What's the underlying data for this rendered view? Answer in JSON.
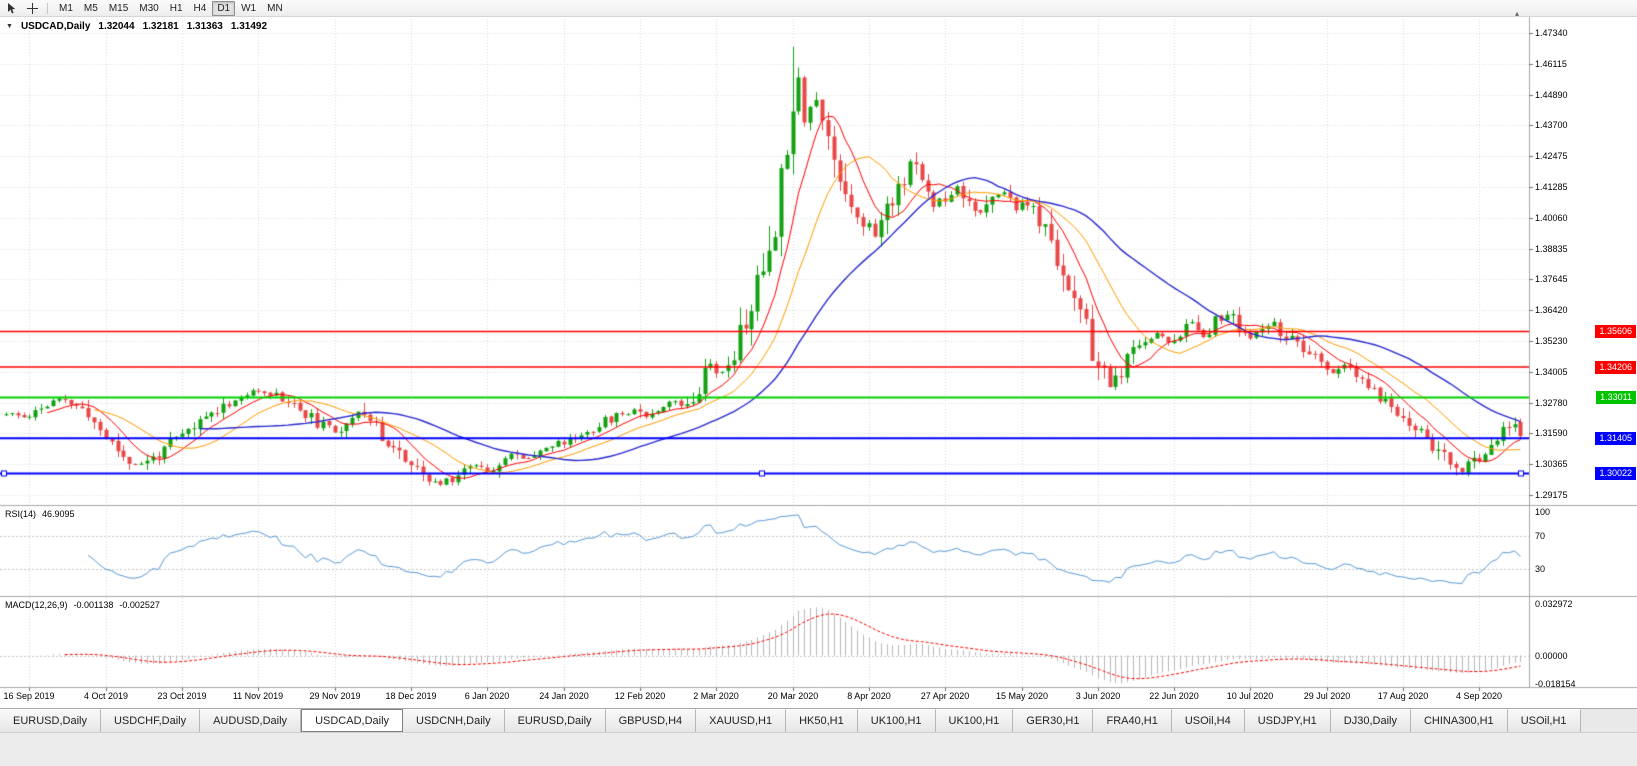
{
  "toolbar": {
    "timeframes": [
      {
        "label": "M1",
        "active": false
      },
      {
        "label": "M5",
        "active": false
      },
      {
        "label": "M15",
        "active": false
      },
      {
        "label": "M30",
        "active": false
      },
      {
        "label": "H1",
        "active": false
      },
      {
        "label": "H4",
        "active": false
      },
      {
        "label": "D1",
        "active": true
      },
      {
        "label": "W1",
        "active": false
      },
      {
        "label": "MN",
        "active": false
      }
    ]
  },
  "chart": {
    "title": {
      "symbol": "USDCAD,Daily",
      "open": "1.32044",
      "high": "1.32181",
      "low": "1.31363",
      "close": "1.31492"
    },
    "price_axis_ticks": [
      "1.47340",
      "1.46115",
      "1.44890",
      "1.43700",
      "1.42475",
      "1.41285",
      "1.40060",
      "1.38835",
      "1.37645",
      "1.36420",
      "1.35230",
      "1.34005",
      "1.32780",
      "1.31590",
      "1.30365",
      "1.29175"
    ],
    "date_axis_ticks": [
      "16 Sep 2019",
      "4 Oct 2019",
      "23 Oct 2019",
      "11 Nov 2019",
      "29 Nov 2019",
      "18 Dec 2019",
      "6 Jan 2020",
      "24 Jan 2020",
      "12 Feb 2020",
      "2 Mar 2020",
      "20 Mar 2020",
      "8 Apr 2020",
      "27 Apr 2020",
      "15 May 2020",
      "3 Jun 2020",
      "22 Jun 2020",
      "10 Jul 2020",
      "29 Jul 2020",
      "17 Aug 2020",
      "4 Sep 2020"
    ],
    "price_tags": [
      {
        "label": "1.35606",
        "price": 1.35606,
        "color": "#ff0000"
      },
      {
        "label": "1.34206",
        "price": 1.34206,
        "color": "#ff0000"
      },
      {
        "label": "1.33011",
        "price": 1.33011,
        "color": "#00c400"
      },
      {
        "label": "1.31405",
        "price": 1.31405,
        "color": "#0000ff"
      },
      {
        "label": "1.30022",
        "price": 1.30022,
        "color": "#0000ff"
      }
    ]
  },
  "rsi": {
    "title": "RSI(14)",
    "value": "46.9095",
    "levels": [
      "100",
      "70",
      "30"
    ]
  },
  "macd": {
    "title": "MACD(12,26,9)",
    "value_main": "-0.001138",
    "value_signal": "-0.002527",
    "levels": [
      "0.032972",
      "0.00000",
      "-0.018154"
    ]
  },
  "tabs": [
    {
      "label": "EURUSD,Daily",
      "active": false
    },
    {
      "label": "USDCHF,Daily",
      "active": false
    },
    {
      "label": "AUDUSD,Daily",
      "active": false
    },
    {
      "label": "USDCAD,Daily",
      "active": true
    },
    {
      "label": "USDCNH,Daily",
      "active": false
    },
    {
      "label": "EURUSD,Daily",
      "active": false
    },
    {
      "label": "GBPUSD,H4",
      "active": false
    },
    {
      "label": "XAUUSD,H1",
      "active": false
    },
    {
      "label": "HK50,H1",
      "active": false
    },
    {
      "label": "UK100,H1",
      "active": false
    },
    {
      "label": "UK100,H1",
      "active": false
    },
    {
      "label": "GER30,H1",
      "active": false
    },
    {
      "label": "FRA40,H1",
      "active": false
    },
    {
      "label": "USOil,H4",
      "active": false
    },
    {
      "label": "USDJPY,H1",
      "active": false
    },
    {
      "label": "DJ30,Daily",
      "active": false
    },
    {
      "label": "CHINA300,H1",
      "active": false
    },
    {
      "label": "USOil,H1",
      "active": false
    }
  ],
  "chart_data": {
    "type": "candlestick",
    "symbol": "USDCAD",
    "period": "Daily",
    "last_bar": {
      "open": 1.32044,
      "high": 1.32181,
      "low": 1.31363,
      "close": 1.31492
    },
    "n_bars": 259,
    "first_label_bar": 4,
    "bars_per_label": 13,
    "x_labels": [
      "16 Sep 2019",
      "4 Oct 2019",
      "23 Oct 2019",
      "11 Nov 2019",
      "29 Nov 2019",
      "18 Dec 2019",
      "6 Jan 2020",
      "24 Jan 2020",
      "12 Feb 2020",
      "2 Mar 2020",
      "20 Mar 2020",
      "8 Apr 2020",
      "27 Apr 2020",
      "15 May 2020",
      "3 Jun 2020",
      "22 Jun 2020",
      "10 Jul 2020",
      "29 Jul 2020",
      "17 Aug 2020",
      "4 Sep 2020"
    ],
    "y_ticks": [
      1.4734,
      1.46115,
      1.4489,
      1.437,
      1.42475,
      1.41285,
      1.4006,
      1.38835,
      1.37645,
      1.3642,
      1.3523,
      1.34005,
      1.3278,
      1.3159,
      1.30365,
      1.29175
    ],
    "y_range": [
      1.29175,
      1.4734
    ],
    "close_anchors": [
      [
        0,
        1.3235
      ],
      [
        3,
        1.3225
      ],
      [
        6,
        1.326
      ],
      [
        9,
        1.3292
      ],
      [
        12,
        1.3268
      ],
      [
        15,
        1.3205
      ],
      [
        18,
        1.312
      ],
      [
        21,
        1.3048
      ],
      [
        23,
        1.3035
      ],
      [
        26,
        1.308
      ],
      [
        29,
        1.3135
      ],
      [
        32,
        1.3185
      ],
      [
        35,
        1.3242
      ],
      [
        38,
        1.3282
      ],
      [
        41,
        1.3312
      ],
      [
        44,
        1.3328
      ],
      [
        47,
        1.33
      ],
      [
        50,
        1.3255
      ],
      [
        53,
        1.32
      ],
      [
        56,
        1.3165
      ],
      [
        58,
        1.3212
      ],
      [
        60,
        1.3252
      ],
      [
        62,
        1.3205
      ],
      [
        64,
        1.315
      ],
      [
        66,
        1.3108
      ],
      [
        68,
        1.3058
      ],
      [
        70,
        1.3008
      ],
      [
        72,
        1.2972
      ],
      [
        74,
        1.2958
      ],
      [
        76,
        1.2988
      ],
      [
        78,
        1.3018
      ],
      [
        80,
        1.3042
      ],
      [
        82,
        1.3012
      ],
      [
        84,
        1.3052
      ],
      [
        86,
        1.3078
      ],
      [
        88,
        1.3058
      ],
      [
        90,
        1.3088
      ],
      [
        93,
        1.3112
      ],
      [
        96,
        1.3132
      ],
      [
        99,
        1.3168
      ],
      [
        102,
        1.3208
      ],
      [
        105,
        1.3238
      ],
      [
        107,
        1.3258
      ],
      [
        109,
        1.323
      ],
      [
        111,
        1.326
      ],
      [
        113,
        1.3288
      ],
      [
        115,
        1.327
      ],
      [
        117,
        1.3312
      ],
      [
        119,
        1.3402
      ],
      [
        120,
        1.3442
      ],
      [
        122,
        1.3392
      ],
      [
        124,
        1.3482
      ],
      [
        126,
        1.3602
      ],
      [
        128,
        1.3732
      ],
      [
        129,
        1.3812
      ],
      [
        130,
        1.3905
      ],
      [
        131,
        1.4008
      ],
      [
        132,
        1.4152
      ],
      [
        133,
        1.4332
      ],
      [
        134,
        1.4502
      ],
      [
        135,
        1.4548
      ],
      [
        136,
        1.4425
      ],
      [
        138,
        1.4472
      ],
      [
        140,
        1.4302
      ],
      [
        142,
        1.4182
      ],
      [
        144,
        1.4062
      ],
      [
        146,
        1.3992
      ],
      [
        148,
        1.3942
      ],
      [
        150,
        1.4042
      ],
      [
        152,
        1.4132
      ],
      [
        154,
        1.4232
      ],
      [
        156,
        1.4152
      ],
      [
        158,
        1.4062
      ],
      [
        160,
        1.4092
      ],
      [
        162,
        1.4132
      ],
      [
        164,
        1.4082
      ],
      [
        166,
        1.4022
      ],
      [
        168,
        1.4072
      ],
      [
        170,
        1.4112
      ],
      [
        172,
        1.4052
      ],
      [
        174,
        1.4062
      ],
      [
        176,
        1.3992
      ],
      [
        178,
        1.3902
      ],
      [
        180,
        1.3802
      ],
      [
        182,
        1.3682
      ],
      [
        184,
        1.3552
      ],
      [
        186,
        1.3422
      ],
      [
        188,
        1.3342
      ],
      [
        190,
        1.3402
      ],
      [
        192,
        1.3472
      ],
      [
        194,
        1.3532
      ],
      [
        196,
        1.3552
      ],
      [
        198,
        1.3518
      ],
      [
        200,
        1.3558
      ],
      [
        202,
        1.3592
      ],
      [
        204,
        1.3548
      ],
      [
        206,
        1.3602
      ],
      [
        208,
        1.3628
      ],
      [
        210,
        1.3572
      ],
      [
        212,
        1.3532
      ],
      [
        214,
        1.3562
      ],
      [
        216,
        1.3588
      ],
      [
        218,
        1.3542
      ],
      [
        220,
        1.3502
      ],
      [
        222,
        1.3468
      ],
      [
        224,
        1.3432
      ],
      [
        226,
        1.3402
      ],
      [
        228,
        1.3422
      ],
      [
        230,
        1.3382
      ],
      [
        232,
        1.3342
      ],
      [
        234,
        1.3302
      ],
      [
        236,
        1.3262
      ],
      [
        238,
        1.3222
      ],
      [
        240,
        1.3182
      ],
      [
        242,
        1.3142
      ],
      [
        244,
        1.3088
      ],
      [
        246,
        1.3038
      ],
      [
        248,
        1.3008
      ],
      [
        250,
        1.3048
      ],
      [
        252,
        1.3098
      ],
      [
        254,
        1.3142
      ],
      [
        256,
        1.3188
      ],
      [
        257,
        1.3208
      ],
      [
        258,
        1.31492
      ]
    ],
    "spikes": [
      {
        "bar": 134,
        "high": 1.468
      },
      {
        "bar": 74,
        "low": 1.2952
      },
      {
        "bar": 247,
        "low": 1.2994
      }
    ],
    "horizontal_lines": [
      {
        "price": 1.35606,
        "color": "#ff0000",
        "width": 1.5,
        "selected": false
      },
      {
        "price": 1.34206,
        "color": "#ff0000",
        "width": 1.5,
        "selected": false
      },
      {
        "price": 1.33011,
        "color": "#00d000",
        "width": 2,
        "selected": false
      },
      {
        "price": 1.31405,
        "color": "#0000ff",
        "width": 2,
        "selected": false
      },
      {
        "price": 1.30022,
        "color": "#0000ff",
        "width": 2,
        "selected": true
      }
    ],
    "moving_averages": [
      {
        "period": 8,
        "color": "#ff0000",
        "width": 1
      },
      {
        "period": 16,
        "color": "#ff9c00",
        "width": 1
      },
      {
        "period": 34,
        "color": "#2a2ad0",
        "width": 1.4
      }
    ],
    "candle_up_color": "#14a114",
    "candle_down_color": "#e84848",
    "grid_color": "#dcdcdc",
    "indicators": {
      "rsi": {
        "period": 14,
        "value": 46.9095,
        "color": "#5b9bd5",
        "levels": [
          70,
          30
        ],
        "axis_labels": [
          100,
          70,
          30
        ]
      },
      "macd": {
        "fast": 12,
        "slow": 26,
        "signal": 9,
        "value_main": -0.001138,
        "value_signal": -0.002527,
        "histogram_color": "#b8b8b8",
        "signal_color": "#ff0000",
        "scale_max": 0.032972,
        "scale_min": -0.018154
      }
    },
    "noise_seed": 11
  }
}
